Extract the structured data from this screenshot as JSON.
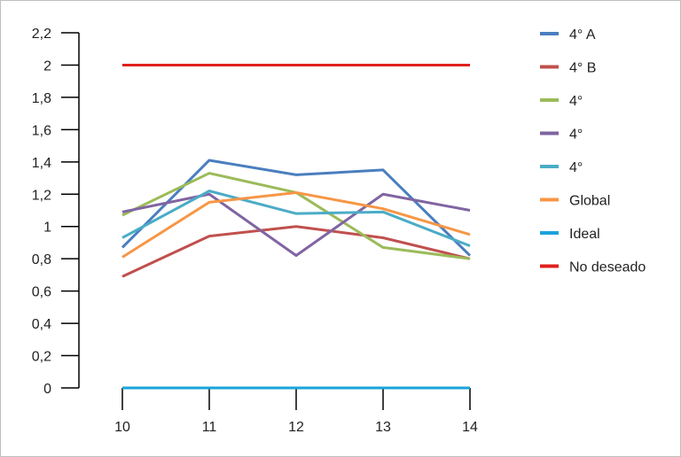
{
  "chart_data": {
    "type": "line",
    "categories": [
      "10",
      "11",
      "12",
      "13",
      "14"
    ],
    "ylim": [
      0,
      2.2
    ],
    "yticks": [
      "0",
      "0,2",
      "0,4",
      "0,6",
      "0,8",
      "1",
      "1,2",
      "1,4",
      "1,6",
      "1,8",
      "2",
      "2,2"
    ],
    "grid": false,
    "legend_position": "right",
    "series": [
      {
        "name": "4° A",
        "color": "#4a7ebf",
        "values": [
          0.87,
          1.41,
          1.32,
          1.35,
          0.82
        ]
      },
      {
        "name": "4° B",
        "color": "#c0504d",
        "values": [
          0.69,
          0.94,
          1.0,
          0.93,
          0.8
        ]
      },
      {
        "name": "4°",
        "color": "#9bbb59",
        "values": [
          1.07,
          1.33,
          1.21,
          0.87,
          0.8
        ]
      },
      {
        "name": "4°",
        "color": "#8064a2",
        "values": [
          1.09,
          1.2,
          0.82,
          1.2,
          1.1
        ]
      },
      {
        "name": "4°",
        "color": "#4bacc6",
        "values": [
          0.93,
          1.22,
          1.08,
          1.09,
          0.88
        ]
      },
      {
        "name": "Global",
        "color": "#f79646",
        "values": [
          0.81,
          1.15,
          1.21,
          1.11,
          0.95
        ]
      },
      {
        "name": "Ideal",
        "color": "#1aa3dc",
        "values": [
          0,
          0,
          0,
          0,
          0
        ]
      },
      {
        "name": "No deseado",
        "color": "#e0201b",
        "values": [
          2,
          2,
          2,
          2,
          2
        ]
      }
    ]
  }
}
